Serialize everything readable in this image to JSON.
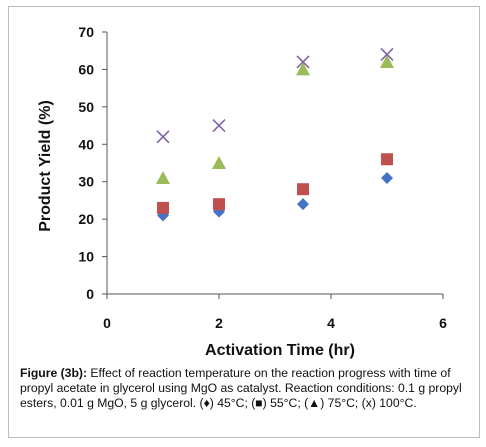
{
  "chart_data": {
    "type": "scatter",
    "xlabel": "Activation Time (hr)",
    "ylabel": "Product Yield (%)",
    "xlim": [
      0,
      6
    ],
    "ylim": [
      0,
      70
    ],
    "xticks": [
      "0",
      "2",
      "4",
      "6"
    ],
    "yticks": [
      "0",
      "10",
      "20",
      "30",
      "40",
      "50",
      "60",
      "70"
    ],
    "grid": false,
    "legend": "none",
    "series": [
      {
        "marker": "diamond",
        "color": "#4472C4",
        "points": [
          [
            1,
            21
          ],
          [
            2,
            22
          ],
          [
            3.5,
            24
          ],
          [
            5,
            31
          ]
        ]
      },
      {
        "marker": "square",
        "color": "#C0504D",
        "points": [
          [
            1,
            23
          ],
          [
            2,
            24
          ],
          [
            3.5,
            28
          ],
          [
            5,
            36
          ]
        ]
      },
      {
        "marker": "triangle",
        "color": "#9BBB59",
        "points": [
          [
            1,
            31
          ],
          [
            2,
            35
          ],
          [
            3.5,
            60
          ],
          [
            5,
            62
          ]
        ]
      },
      {
        "marker": "x",
        "color": "#8064A2",
        "points": [
          [
            1,
            42
          ],
          [
            2,
            45
          ],
          [
            3.5,
            62
          ],
          [
            5,
            64
          ]
        ]
      }
    ]
  },
  "caption": {
    "label": "Figure (3b):",
    "text": " Effect of reaction temperature on the reaction progress with time of propyl acetate in glycerol using MgO as catalyst. Reaction conditions: 0.1 g propyl esters, 0.01 g MgO, 5 g glycerol. (♦) 45°C; (■) 55°C; (▲) 75°C; (x) 100°C."
  }
}
